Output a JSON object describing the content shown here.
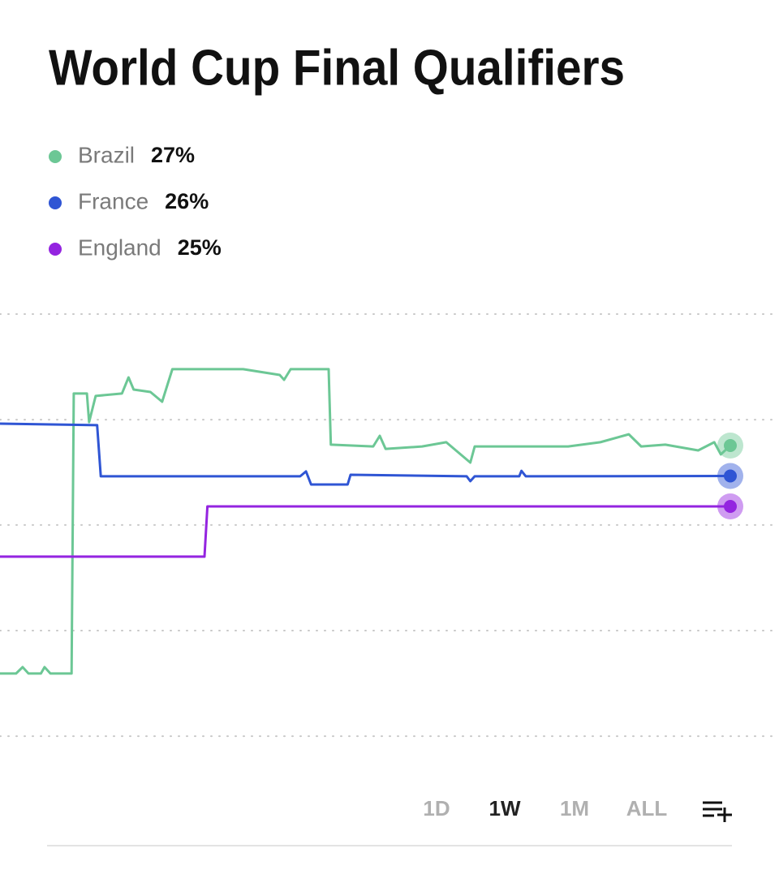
{
  "chart_data": {
    "type": "line",
    "title": "World Cup Final Qualifiers",
    "xlim": [
      0,
      100
    ],
    "ylim": [
      16.5,
      32
    ],
    "yticks": [
      31.32,
      27.85,
      24.39,
      20.92,
      17.45
    ],
    "grid": true,
    "series": [
      {
        "name": "Brazil",
        "color": "#6cc795",
        "legend_value": {
          "value": 27,
          "label": "27%"
        },
        "x": [
          0,
          2.2,
          3.1,
          3.9,
          5.6,
          6.1,
          6.9,
          9.8,
          10.1,
          11.9,
          12.2,
          13.1,
          16.7,
          17.6,
          18.3,
          20.6,
          22.2,
          23.6,
          33.3,
          38.3,
          38.9,
          39.8,
          45,
          45.3,
          51.1,
          52,
          52.8,
          57.8,
          61.1,
          64.4,
          65,
          77.8,
          82.2,
          86.1,
          87.8,
          91.1,
          95.6,
          97.8,
          98.7,
          100
        ],
        "values": [
          19.51,
          19.51,
          19.72,
          19.51,
          19.51,
          19.72,
          19.51,
          19.51,
          28.71,
          28.71,
          27.77,
          28.63,
          28.71,
          29.24,
          28.84,
          28.76,
          28.44,
          29.51,
          29.51,
          29.32,
          29.16,
          29.51,
          29.51,
          27.03,
          26.97,
          27.32,
          26.89,
          26.97,
          27.11,
          26.44,
          26.97,
          26.97,
          27.11,
          27.37,
          26.97,
          27.03,
          26.84,
          27.11,
          26.71,
          27
        ]
      },
      {
        "name": "France",
        "color": "#2f55d4",
        "legend_value": {
          "value": 26,
          "label": "26%"
        },
        "x": [
          0,
          13.3,
          13.8,
          41.1,
          41.9,
          42.6,
          47.6,
          48,
          63.9,
          64.4,
          65,
          71.1,
          71.4,
          72,
          100
        ],
        "values": [
          27.72,
          27.67,
          25.99,
          25.99,
          26.15,
          25.72,
          25.72,
          26.04,
          25.99,
          25.83,
          25.99,
          25.99,
          26.17,
          25.99,
          26
        ]
      },
      {
        "name": "England",
        "color": "#9424e0",
        "legend_value": {
          "value": 25,
          "label": "25%"
        },
        "x": [
          0,
          28,
          28.4,
          100
        ],
        "values": [
          23.35,
          23.35,
          25,
          25
        ]
      }
    ],
    "range_options": [
      "1D",
      "1W",
      "1M",
      "ALL"
    ],
    "selected_range": "1W"
  }
}
